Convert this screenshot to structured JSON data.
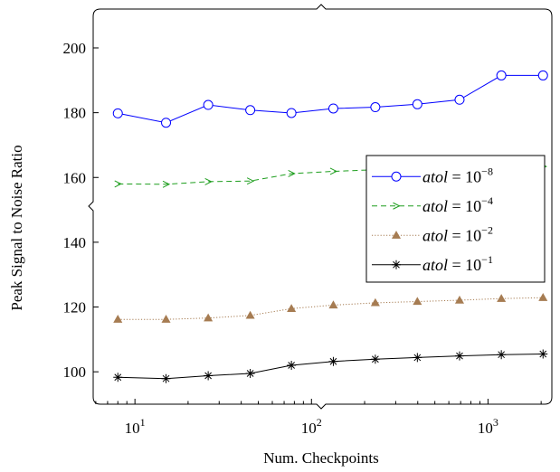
{
  "chart_data": {
    "type": "line",
    "title": "",
    "xlabel": "Num. Checkpoints",
    "ylabel": "Peak Signal to Noise Ratio",
    "xscale": "log",
    "xlim": [
      5.8,
      2300
    ],
    "ylim": [
      90,
      212
    ],
    "xticks": [
      10,
      100,
      1000
    ],
    "xtick_labels": [
      {
        "base": "10",
        "exp": "1"
      },
      {
        "base": "10",
        "exp": "2"
      },
      {
        "base": "10",
        "exp": "3"
      }
    ],
    "yticks": [
      100,
      120,
      140,
      160,
      180,
      200
    ],
    "ytick_labels": [
      "100",
      "120",
      "140",
      "160",
      "180",
      "200"
    ],
    "grid": false,
    "legend_position": "center-right",
    "x": [
      8,
      15,
      26,
      45,
      77,
      133,
      230,
      398,
      690,
      1190,
      2050
    ],
    "series": [
      {
        "name": "atol = 10^-8",
        "legend": {
          "var": "atol",
          "eq": "= 10",
          "exp": "−8"
        },
        "color": "#0000ff",
        "marker": "circle",
        "linestyle": "solid",
        "values": [
          179.8,
          176.9,
          182.4,
          180.8,
          179.9,
          181.3,
          181.7,
          182.6,
          184.0,
          191.5,
          191.5
        ]
      },
      {
        "name": "atol = 10^-4",
        "legend": {
          "var": "atol",
          "eq": "= 10",
          "exp": "−4"
        },
        "color": "#1e9e1e",
        "marker": "tri-x",
        "linestyle": "dashed",
        "values": [
          158.0,
          157.9,
          158.7,
          158.9,
          161.2,
          161.9,
          162.4,
          162.8,
          163.0,
          163.2,
          163.4
        ]
      },
      {
        "name": "atol = 10^-2",
        "legend": {
          "var": "atol",
          "eq": "= 10",
          "exp": "−2"
        },
        "color": "#a67c52",
        "marker": "triangle",
        "linestyle": "dotted",
        "values": [
          116.2,
          116.2,
          116.6,
          117.4,
          119.5,
          120.6,
          121.3,
          121.7,
          122.1,
          122.6,
          122.9
        ]
      },
      {
        "name": "atol = 10^-1",
        "legend": {
          "var": "atol",
          "eq": "= 10",
          "exp": "−1"
        },
        "color": "#000000",
        "marker": "star",
        "linestyle": "solid",
        "values": [
          98.3,
          97.9,
          98.8,
          99.5,
          102.0,
          103.2,
          103.9,
          104.4,
          104.9,
          105.3,
          105.5
        ]
      }
    ]
  }
}
